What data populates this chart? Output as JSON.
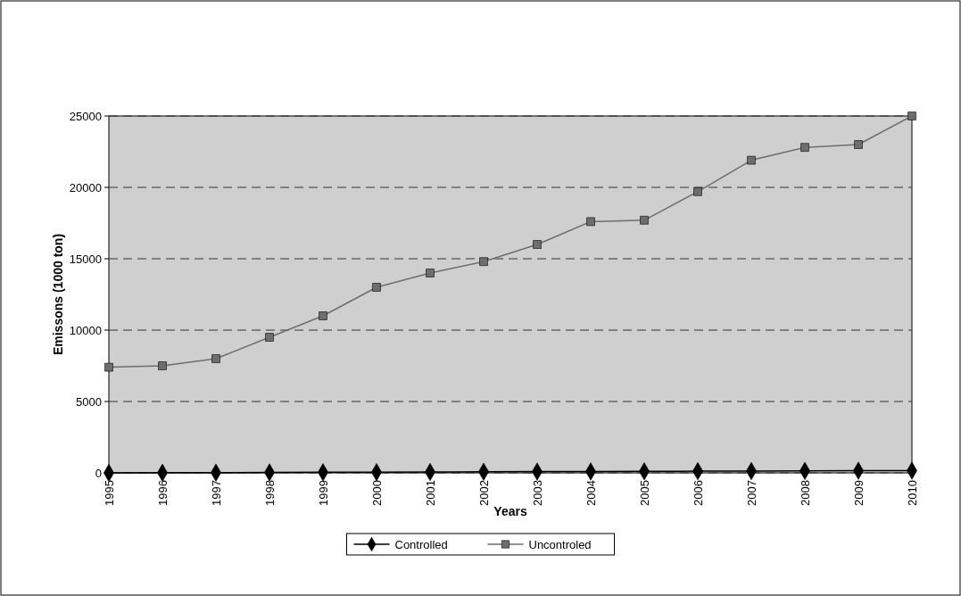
{
  "chart_data": {
    "type": "line",
    "xlabel": "Years",
    "ylabel": "Emissons (1000 ton)",
    "categories": [
      "1995",
      "1996",
      "1997",
      "1998",
      "1999",
      "2000",
      "2001",
      "2002",
      "2003",
      "2004",
      "2005",
      "2006",
      "2007",
      "2008",
      "2009",
      "2010"
    ],
    "series": [
      {
        "name": "Controlled",
        "color": "#000000",
        "marker": "diamond",
        "values": [
          0,
          10,
          20,
          30,
          40,
          50,
          60,
          80,
          90,
          100,
          110,
          120,
          130,
          140,
          150,
          160
        ]
      },
      {
        "name": "Uncontroled",
        "color": "#6e6e6e",
        "marker": "square",
        "values": [
          7400,
          7500,
          8000,
          9500,
          11000,
          13000,
          14000,
          14800,
          16000,
          17600,
          17700,
          19700,
          21900,
          22800,
          23000,
          25000
        ]
      }
    ],
    "ylim": [
      0,
      25000
    ],
    "yticks": [
      0,
      5000,
      10000,
      15000,
      20000,
      25000
    ],
    "grid": "y",
    "legend": "bottom",
    "line_style": "solid"
  }
}
